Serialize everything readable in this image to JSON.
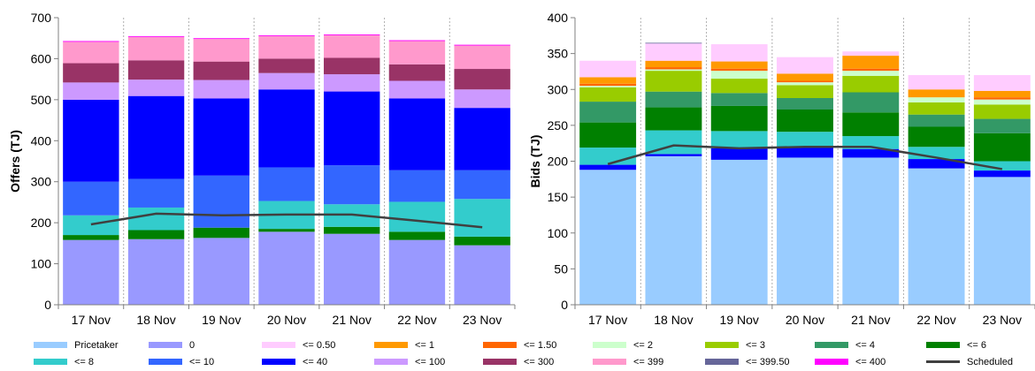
{
  "chart_data": [
    {
      "type": "bar",
      "stacked": true,
      "title": "",
      "xlabel": "",
      "ylabel": "Offers (TJ)",
      "ylim": [
        0,
        700
      ],
      "yticks": [
        0,
        100,
        200,
        300,
        400,
        500,
        600,
        700
      ],
      "grid": "vertical-dashed",
      "categories": [
        "17 Nov",
        "18 Nov",
        "19 Nov",
        "20 Nov",
        "21 Nov",
        "22 Nov",
        "23 Nov"
      ],
      "series": [
        {
          "name": "0",
          "color": "#9999ff",
          "values": [
            158,
            160,
            163,
            178,
            173,
            158,
            145
          ]
        },
        {
          "name": "<= 6",
          "color": "#008000",
          "values": [
            12,
            22,
            25,
            7,
            17,
            20,
            21
          ]
        },
        {
          "name": "<= 8",
          "color": "#33cccc",
          "values": [
            48,
            55,
            0,
            68,
            55,
            73,
            92
          ]
        },
        {
          "name": "<= 10",
          "color": "#3366ff",
          "values": [
            82,
            70,
            127,
            82,
            95,
            77,
            70
          ]
        },
        {
          "name": "<= 40",
          "color": "#0000ff",
          "values": [
            200,
            202,
            188,
            190,
            180,
            175,
            152
          ]
        },
        {
          "name": "<= 100",
          "color": "#cc99ff",
          "values": [
            42,
            40,
            45,
            40,
            42,
            43,
            45
          ]
        },
        {
          "name": "<= 300",
          "color": "#993366",
          "values": [
            47,
            47,
            45,
            35,
            40,
            40,
            50
          ]
        },
        {
          "name": "<= 399",
          "color": "#ff99cc",
          "values": [
            52,
            57,
            55,
            55,
            55,
            57,
            57
          ]
        },
        {
          "name": "<= 400",
          "color": "#ff00ff",
          "values": [
            2,
            2,
            2,
            2,
            2,
            2,
            2
          ]
        }
      ],
      "lines": [
        {
          "name": "Scheduled",
          "color": "#404040",
          "values": [
            196,
            222,
            218,
            220,
            220,
            205,
            189
          ]
        }
      ]
    },
    {
      "type": "bar",
      "stacked": true,
      "title": "",
      "xlabel": "",
      "ylabel": "Bids (TJ)",
      "ylim": [
        0,
        400
      ],
      "yticks": [
        0,
        50,
        100,
        150,
        200,
        250,
        300,
        350,
        400
      ],
      "grid": "vertical-dashed",
      "categories": [
        "17 Nov",
        "18 Nov",
        "19 Nov",
        "20 Nov",
        "21 Nov",
        "22 Nov",
        "23 Nov"
      ],
      "series": [
        {
          "name": "Pricetaker",
          "color": "#99ccff",
          "values": [
            188,
            207,
            202,
            205,
            205,
            190,
            178
          ]
        },
        {
          "name": "<= 40",
          "color": "#0000ff",
          "values": [
            7,
            3,
            16,
            14,
            12,
            13,
            9
          ]
        },
        {
          "name": "<= 8",
          "color": "#33cccc",
          "values": [
            24,
            33,
            24,
            22,
            18,
            17,
            13
          ]
        },
        {
          "name": "<= 6",
          "color": "#008000",
          "values": [
            35,
            32,
            35,
            31,
            33,
            28,
            39
          ]
        },
        {
          "name": "<= 4",
          "color": "#339966",
          "values": [
            29,
            22,
            18,
            16,
            28,
            17,
            20
          ]
        },
        {
          "name": "<= 3",
          "color": "#99cc00",
          "values": [
            20,
            29,
            20,
            18,
            23,
            17,
            20
          ]
        },
        {
          "name": "<= 2",
          "color": "#ccffcc",
          "values": [
            2,
            2,
            11,
            4,
            7,
            7,
            7
          ]
        },
        {
          "name": "<= 1.50",
          "color": "#ff6600",
          "values": [
            3,
            3,
            3,
            2,
            3,
            0,
            3
          ]
        },
        {
          "name": "<= 1",
          "color": "#ff9900",
          "values": [
            9,
            9,
            10,
            10,
            18,
            11,
            9
          ]
        },
        {
          "name": "<= 0.50",
          "color": "#ffccff",
          "values": [
            23,
            24,
            24,
            23,
            6,
            20,
            22
          ]
        },
        {
          "name": "<= 399.50",
          "color": "#666699",
          "values": [
            0,
            1,
            0,
            0,
            0,
            0,
            0
          ]
        }
      ],
      "lines": [
        {
          "name": "Scheduled",
          "color": "#404040",
          "values": [
            196,
            222,
            218,
            220,
            220,
            205,
            189
          ]
        }
      ]
    }
  ],
  "legend": {
    "placement": "bottom",
    "items": [
      {
        "label": "Pricetaker",
        "color": "#99ccff",
        "kind": "box"
      },
      {
        "label": "0",
        "color": "#9999ff",
        "kind": "box"
      },
      {
        "label": "<= 0.50",
        "color": "#ffccff",
        "kind": "box"
      },
      {
        "label": "<= 1",
        "color": "#ff9900",
        "kind": "box"
      },
      {
        "label": "<= 1.50",
        "color": "#ff6600",
        "kind": "box"
      },
      {
        "label": "<= 2",
        "color": "#ccffcc",
        "kind": "box"
      },
      {
        "label": "<= 3",
        "color": "#99cc00",
        "kind": "box"
      },
      {
        "label": "<= 4",
        "color": "#339966",
        "kind": "box"
      },
      {
        "label": "<= 6",
        "color": "#008000",
        "kind": "box"
      },
      {
        "label": "<= 8",
        "color": "#33cccc",
        "kind": "box"
      },
      {
        "label": "<= 10",
        "color": "#3366ff",
        "kind": "box"
      },
      {
        "label": "<= 40",
        "color": "#0000ff",
        "kind": "box"
      },
      {
        "label": "<= 100",
        "color": "#cc99ff",
        "kind": "box"
      },
      {
        "label": "<= 300",
        "color": "#993366",
        "kind": "box"
      },
      {
        "label": "<= 399",
        "color": "#ff99cc",
        "kind": "box"
      },
      {
        "label": "<= 399.50",
        "color": "#666699",
        "kind": "box"
      },
      {
        "label": "<= 400",
        "color": "#ff00ff",
        "kind": "box"
      },
      {
        "label": "Scheduled",
        "color": "#404040",
        "kind": "line"
      }
    ]
  }
}
